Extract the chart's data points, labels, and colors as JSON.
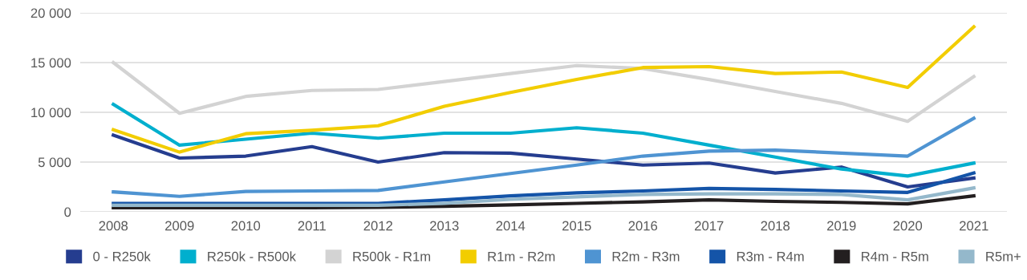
{
  "chart_data": {
    "type": "line",
    "categories": [
      "2008",
      "2009",
      "2010",
      "2011",
      "2012",
      "2013",
      "2014",
      "2015",
      "2016",
      "2017",
      "2018",
      "2019",
      "2020",
      "2021"
    ],
    "series": [
      {
        "name": "0 - R250k",
        "color": "#253d8f",
        "values": [
          7700,
          5400,
          5600,
          6550,
          5000,
          5950,
          5900,
          5300,
          4700,
          4900,
          3900,
          4500,
          2500,
          3400
        ]
      },
      {
        "name": "R250k - R500k",
        "color": "#00afce",
        "values": [
          10800,
          6700,
          7300,
          7900,
          7400,
          7900,
          7900,
          8450,
          7900,
          6700,
          5500,
          4300,
          3600,
          4900
        ]
      },
      {
        "name": "R500k - R1m",
        "color": "#d3d3d3",
        "values": [
          15000,
          9900,
          11600,
          12200,
          12300,
          13100,
          13900,
          14700,
          14400,
          13300,
          12100,
          10900,
          9100,
          13600
        ]
      },
      {
        "name": "R1m - R2m",
        "color": "#f2cd00",
        "values": [
          8250,
          6000,
          7850,
          8200,
          8650,
          10600,
          12000,
          13300,
          14500,
          14600,
          13900,
          14050,
          12500,
          18600
        ]
      },
      {
        "name": "R2m - R3m",
        "color": "#4f94d2",
        "values": [
          2000,
          1550,
          2050,
          2100,
          2150,
          3000,
          3850,
          4700,
          5600,
          6100,
          6200,
          5900,
          5600,
          9400
        ]
      },
      {
        "name": "R3m - R4m",
        "color": "#1454a8",
        "values": [
          850,
          850,
          850,
          850,
          850,
          1200,
          1600,
          1900,
          2100,
          2350,
          2250,
          2100,
          1950,
          3900
        ]
      },
      {
        "name": "R4m - R5m",
        "color": "#231f20",
        "values": [
          400,
          400,
          400,
          400,
          450,
          550,
          700,
          850,
          1000,
          1200,
          1050,
          950,
          800,
          1600
        ]
      },
      {
        "name": "R5m+",
        "color": "#94b8cb",
        "values": [
          650,
          650,
          650,
          650,
          650,
          850,
          1250,
          1500,
          1750,
          1800,
          1800,
          1750,
          1200,
          2400
        ]
      }
    ],
    "ylim": [
      0,
      20000
    ],
    "yticks": [
      {
        "value": 0,
        "label": "0"
      },
      {
        "value": 5000,
        "label": "5 000"
      },
      {
        "value": 10000,
        "label": "10 000"
      },
      {
        "value": 15000,
        "label": "15 000"
      },
      {
        "value": 20000,
        "label": "20 000"
      }
    ],
    "grid": "y",
    "legend": "bottom",
    "marker": "none",
    "line_style": "solid"
  }
}
